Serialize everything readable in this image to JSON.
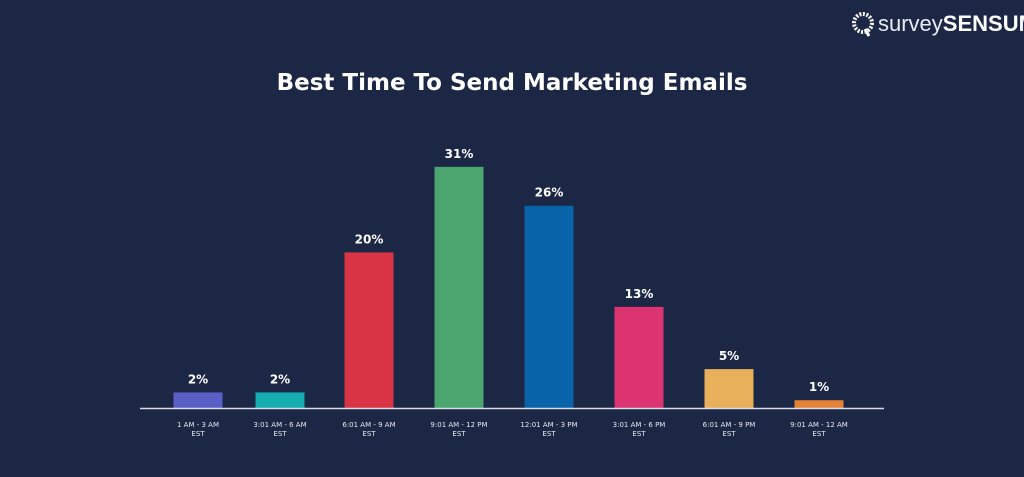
{
  "logo": {
    "part1": "survey",
    "part2": "SENSUM"
  },
  "chart_data": {
    "type": "bar",
    "title": "Best Time To Send Marketing Emails",
    "categories": [
      [
        "1 AM - 3 AM",
        "EST"
      ],
      [
        "3:01 AM - 6 AM",
        "EST"
      ],
      [
        "6:01 AM - 9 AM",
        "EST"
      ],
      [
        "9:01 AM - 12 PM",
        "EST"
      ],
      [
        "12:01 AM - 3 PM",
        "EST"
      ],
      [
        "3:01 AM - 6 PM",
        "EST"
      ],
      [
        "6:01 AM - 9 PM",
        "EST"
      ],
      [
        "9:01 AM - 12 AM",
        "EST"
      ]
    ],
    "values": [
      2,
      2,
      20,
      31,
      26,
      13,
      5,
      1
    ],
    "data_labels": [
      "2%",
      "2%",
      "20%",
      "31%",
      "26%",
      "13%",
      "5%",
      "1%"
    ],
    "colors": [
      "#5a5fc8",
      "#16adb0",
      "#d93445",
      "#4aa56e",
      "#0863a8",
      "#dc3371",
      "#e8b05a",
      "#e58238"
    ],
    "xlabel": "",
    "ylabel": "",
    "grid": false
  }
}
